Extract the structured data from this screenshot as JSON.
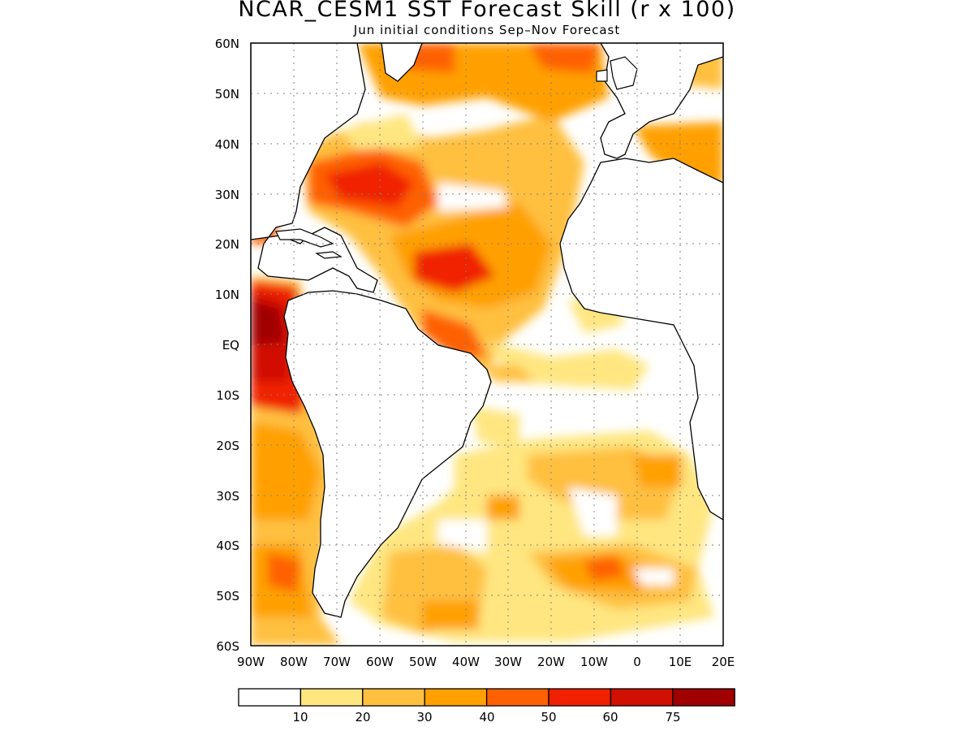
{
  "title": "NCAR_CESM1 SST Forecast Skill (r x 100)",
  "subtitle": "Jun initial conditions  Sep–Nov Forecast",
  "map": {
    "lat_range": [
      -60,
      60
    ],
    "lon_range": [
      -90,
      20
    ],
    "lat_labels": [
      "60N",
      "50N",
      "40N",
      "30N",
      "20N",
      "10N",
      "EQ",
      "10S",
      "20S",
      "30S",
      "40S",
      "50S",
      "60S"
    ],
    "lon_labels": [
      "90W",
      "80W",
      "70W",
      "60W",
      "50W",
      "40W",
      "30W",
      "20W",
      "10W",
      "0",
      "10E",
      "20E"
    ],
    "grid": "dotted",
    "coastline_color": "#000000"
  },
  "colorbar": {
    "colors": [
      "#ffffff",
      "#ffe680",
      "#ffc040",
      "#ffa000",
      "#ff6000",
      "#f02000",
      "#d01000",
      "#a00000"
    ],
    "labels": [
      "10",
      "20",
      "30",
      "40",
      "50",
      "60",
      "75"
    ]
  }
}
